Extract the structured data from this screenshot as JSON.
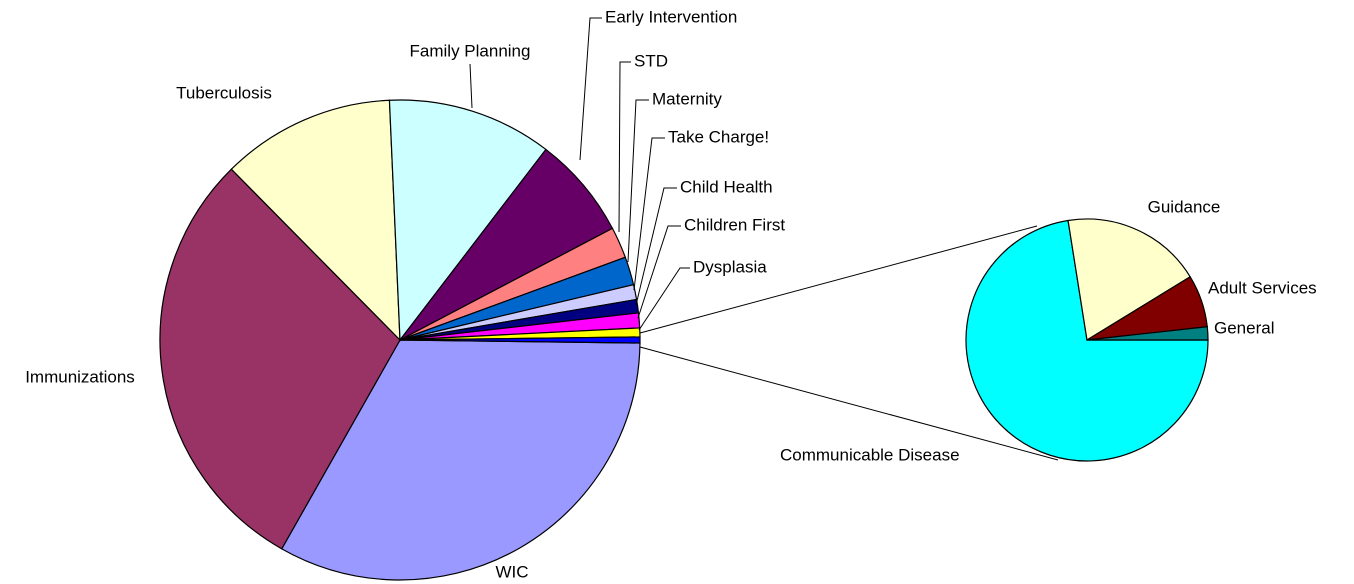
{
  "chart_data": {
    "type": "pie-of-pie",
    "categories": [
      "WIC",
      "Immunizations",
      "Tuberculosis",
      "Family Planning",
      "Early Intervention",
      "STD",
      "Maternity",
      "Take Charge!",
      "Child Health",
      "Children First",
      "Dysplasia"
    ],
    "values": [
      33,
      29.4,
      11.7,
      11.1,
      6.9,
      2.1,
      1.9,
      1,
      0.9,
      1,
      0.6
    ],
    "colors": [
      "#9999ff",
      "#993366",
      "#ffffcc",
      "#ccffff",
      "#660066",
      "#ff8080",
      "#0066cc",
      "#ccccff",
      "#000080",
      "#ff00ff",
      "#ffff00"
    ],
    "other_color": "#0000ff",
    "secondary": {
      "categories": [
        "Communicable Disease",
        "Guidance",
        "Adult Services",
        "General"
      ],
      "values": [
        0.29,
        0.075,
        0.028,
        0.007
      ],
      "colors": [
        "#00ffff",
        "#ffffcc",
        "#800000",
        "#008080"
      ]
    }
  }
}
